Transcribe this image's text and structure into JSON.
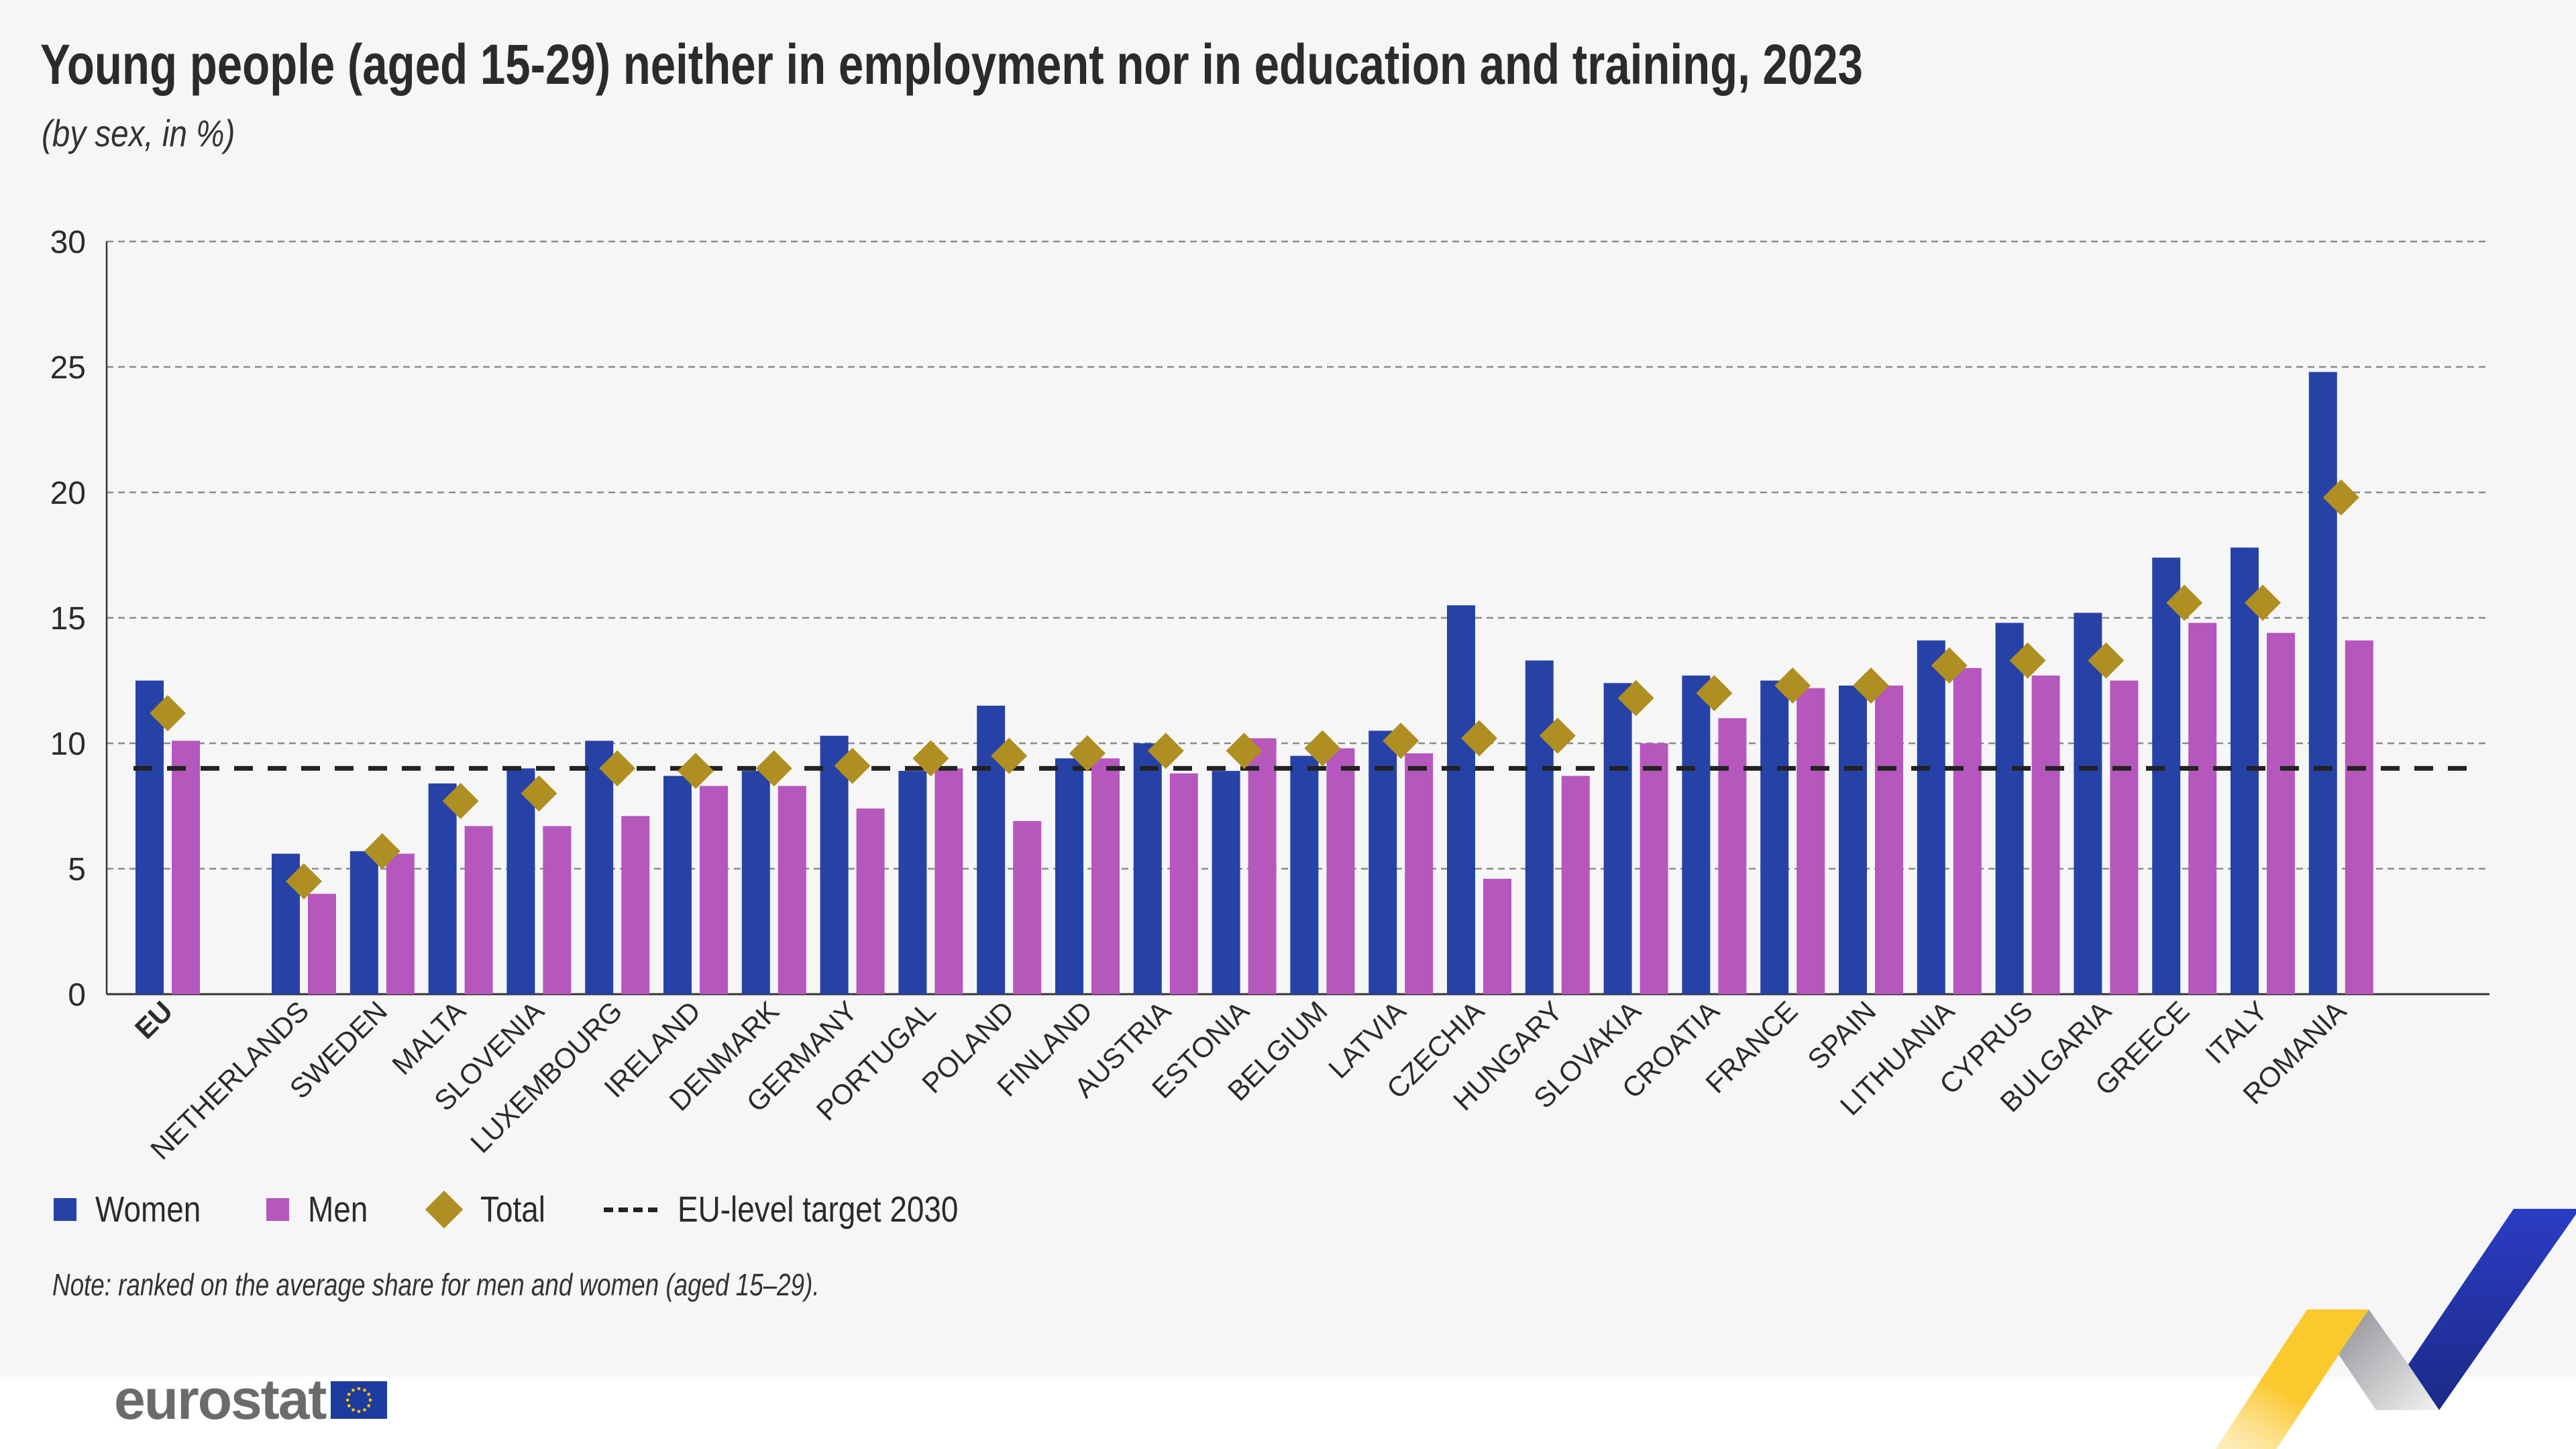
{
  "title": "Young people (aged 15-29) neither in employment nor in education and training, 2023",
  "subtitle": "(by sex, in %)",
  "note": "Note: ranked on the average share for men and women (aged 15–29).",
  "logo": "eurostat",
  "colors": {
    "women": "#2642a6",
    "men": "#b657be",
    "total": "#b08f22",
    "target": "#222222",
    "background": "#f6f6f6"
  },
  "legend": {
    "women": "Women",
    "men": "Men",
    "total": "Total",
    "target": "EU-level target 2030"
  },
  "chart_data": {
    "type": "bar",
    "title": "Young people (aged 15-29) neither in employment nor in education and training, 2023",
    "subtitle": "(by sex, in %)",
    "ylim": [
      0,
      30
    ],
    "yticks": [
      "0",
      "5",
      "10",
      "15",
      "20",
      "25",
      "30"
    ],
    "grid": true,
    "legend_position": "bottom-left",
    "categories": [
      "EU",
      "NETHERLANDS",
      "SWEDEN",
      "MALTA",
      "SLOVENIA",
      "LUXEMBOURG",
      "IRELAND",
      "DENMARK",
      "GERMANY",
      "PORTUGAL",
      "POLAND",
      "FINLAND",
      "AUSTRIA",
      "ESTONIA",
      "BELGIUM",
      "LATVIA",
      "CZECHIA",
      "HUNGARY",
      "SLOVAKIA",
      "CROATIA",
      "FRANCE",
      "SPAIN",
      "LITHUANIA",
      "CYPRUS",
      "BULGARIA",
      "GREECE",
      "ITALY",
      "ROMANIA"
    ],
    "series": [
      {
        "name": "Women",
        "type": "bar",
        "values": [
          12.5,
          5.6,
          5.7,
          8.4,
          9.0,
          10.1,
          8.7,
          8.9,
          10.3,
          8.9,
          11.5,
          9.4,
          10.0,
          8.9,
          9.5,
          10.5,
          15.5,
          13.3,
          12.4,
          12.7,
          12.5,
          12.3,
          14.1,
          14.8,
          15.2,
          17.4,
          17.8,
          24.8
        ]
      },
      {
        "name": "Men",
        "type": "bar",
        "values": [
          10.1,
          4.0,
          5.6,
          6.7,
          6.7,
          7.1,
          8.3,
          8.3,
          7.4,
          9.0,
          6.9,
          9.4,
          8.8,
          10.2,
          9.8,
          9.6,
          4.6,
          8.7,
          10.0,
          11.0,
          12.2,
          12.3,
          13.0,
          12.7,
          12.5,
          14.8,
          14.4,
          14.1
        ]
      },
      {
        "name": "Total",
        "type": "scatter",
        "marker": "diamond",
        "values": [
          11.2,
          4.5,
          5.7,
          7.7,
          8.0,
          9.0,
          8.9,
          9.0,
          9.1,
          9.4,
          9.5,
          9.6,
          9.7,
          9.7,
          9.8,
          10.1,
          10.2,
          10.3,
          11.8,
          12.0,
          12.3,
          12.3,
          13.1,
          13.3,
          13.3,
          15.6,
          15.6,
          19.8
        ]
      }
    ],
    "reference_line": {
      "name": "EU-level target 2030",
      "value": 9,
      "style": "dashed"
    }
  }
}
